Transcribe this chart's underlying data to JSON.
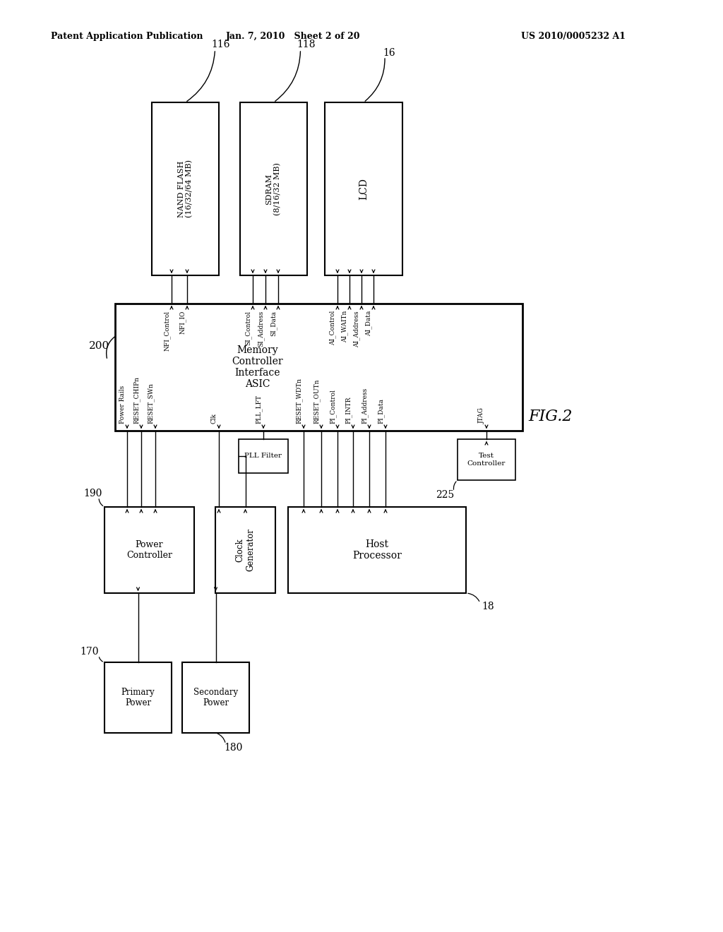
{
  "bg": "#ffffff",
  "header_left": "Patent Application Publication",
  "header_mid": "Jan. 7, 2010   Sheet 2 of 20",
  "header_right": "US 2010/0005232 A1",
  "fig2": "FIG.2",
  "nfi_signals": [
    "NFI_Control",
    "NFI_IO"
  ],
  "si_signals": [
    "SI_Control",
    "SI_Address",
    "SI_Data"
  ],
  "ai_signals": [
    "AI_Control",
    "AI_WAITn",
    "AI_Address",
    "AI_Data"
  ],
  "bot_left_signals": [
    "Power Rails",
    "RESET_CHIPn",
    "RESET_SWn"
  ],
  "clk_signal": "Clk",
  "pll_signal": "PLL_LFT",
  "pi_signals": [
    "RESET_WDTn",
    "RESET_OUTn",
    "PI_Control",
    "PI_INTR",
    "PI_Address",
    "PI_Data"
  ],
  "jtag_signal": "JTAG",
  "label_200": "200",
  "label_190": "190",
  "label_170": "170",
  "label_180": "180",
  "label_225": "225",
  "label_116": "116",
  "label_118": "118",
  "label_16": "16",
  "label_18": "18"
}
